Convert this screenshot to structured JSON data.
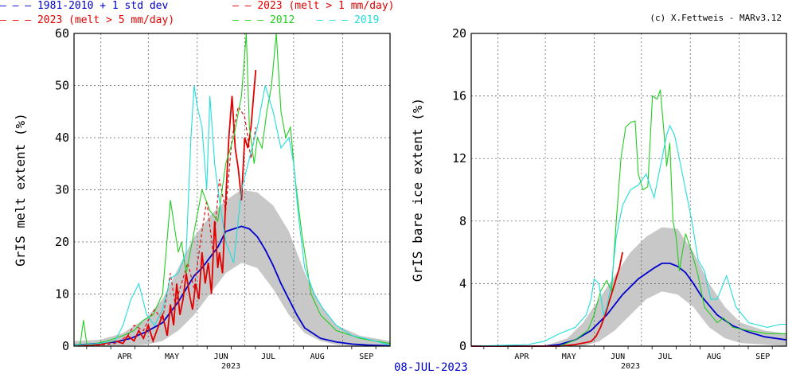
{
  "legend": [
    {
      "dash": "– – –",
      "label": "1981-2010 + 1 std dev",
      "color": "#0000cc"
    },
    {
      "dash": "— —",
      "label": "2023 (melt > 1 mm/day)",
      "color": "#e00000"
    },
    {
      "dash": "– – –",
      "label": "2023 (melt > 5 mm/day)",
      "color": "#e00000"
    },
    {
      "dash": "– – –",
      "label": "2012",
      "color": "#22cc22"
    },
    {
      "dash": "– – –",
      "label": "2019",
      "color": "#22dddd"
    }
  ],
  "credit": "(c) X.Fettweis - MARv3.12",
  "footer": {
    "year": "2023",
    "date": "08-JUL-2023"
  },
  "colors": {
    "mean": "#0000cc",
    "y2023": "#e00000",
    "y2012": "#22cc22",
    "y2019": "#22dddd",
    "band": "#c8c8c8"
  },
  "chart_data": [
    {
      "type": "line",
      "title": "",
      "ylabel": "GrIS melt extent (%)",
      "xlabel": "2023",
      "ylim": [
        0,
        60
      ],
      "yticks": [
        "0",
        "10",
        "20",
        "30",
        "40",
        "50",
        "60"
      ],
      "xlim": [
        74,
        274
      ],
      "month_ticks": [
        {
          "day": 91,
          "label": "APR"
        },
        {
          "day": 121,
          "label": "MAY"
        },
        {
          "day": 152,
          "label": "JUN"
        },
        {
          "day": 182,
          "label": "JUL"
        },
        {
          "day": 213,
          "label": "AUG"
        },
        {
          "day": 244,
          "label": "SEP"
        }
      ],
      "grid": true,
      "band": {
        "x": [
          74,
          90,
          105,
          120,
          130,
          140,
          150,
          160,
          170,
          180,
          190,
          200,
          210,
          220,
          230,
          240,
          255,
          274
        ],
        "upper": [
          1,
          1.2,
          2.5,
          5.5,
          9,
          15,
          21,
          25,
          28,
          30,
          29.5,
          27,
          22,
          14,
          8,
          4,
          2,
          1
        ],
        "lower": [
          0,
          0,
          0,
          0.3,
          1,
          3,
          6,
          10,
          14,
          16,
          15,
          11,
          6,
          2.5,
          1,
          0.3,
          0,
          0
        ]
      },
      "series": [
        {
          "name": "1981-2010",
          "key": "mean",
          "x": [
            74,
            90,
            100,
            110,
            120,
            130,
            140,
            145,
            150,
            155,
            160,
            165,
            170,
            175,
            180,
            185,
            190,
            195,
            200,
            205,
            210,
            215,
            220,
            230,
            240,
            250,
            260,
            274
          ],
          "y": [
            0.2,
            0.5,
            0.8,
            1.5,
            2.8,
            4.5,
            8.5,
            11,
            13.5,
            15,
            17,
            19,
            22,
            22.5,
            23,
            22.5,
            21,
            18.5,
            15.5,
            12,
            9,
            6,
            3.5,
            1.5,
            0.8,
            0.4,
            0.2,
            0.05
          ]
        },
        {
          "name": "2023 (melt > 1 mm/day)",
          "key": "y2023",
          "x": [
            74,
            90,
            100,
            105,
            108,
            112,
            115,
            118,
            121,
            124,
            127,
            130,
            133,
            135,
            137,
            139,
            141,
            143,
            145,
            147,
            149,
            151,
            153,
            155,
            157,
            159,
            161,
            163,
            165,
            166,
            168,
            170,
            172,
            174,
            176,
            178,
            180,
            182,
            184,
            186,
            189
          ],
          "y": [
            0.1,
            0.3,
            1,
            0.5,
            2,
            1,
            3,
            1.5,
            4,
            1,
            3.5,
            6,
            2,
            8,
            4,
            12,
            6,
            9,
            14,
            10,
            7,
            12,
            9,
            18,
            12,
            16,
            10,
            24,
            15,
            18,
            14,
            28,
            40,
            48,
            38,
            34,
            28,
            40,
            38,
            42,
            53
          ]
        },
        {
          "name": "2023 (melt > 5 mm/day)",
          "key": "y2023",
          "dashed": true,
          "x": [
            74,
            90,
            100,
            108,
            112,
            118,
            121,
            125,
            130,
            135,
            138,
            142,
            146,
            150,
            154,
            158,
            162,
            166,
            170,
            174,
            178,
            182,
            186,
            189
          ],
          "y": [
            0,
            0.2,
            0.5,
            2,
            4,
            3,
            5,
            7,
            5,
            14,
            8,
            12,
            16,
            11,
            20,
            28,
            18,
            32,
            26,
            40,
            46,
            44,
            36,
            42
          ]
        },
        {
          "name": "2012",
          "key": "y2012",
          "x": [
            74,
            78,
            80,
            82,
            85,
            95,
            105,
            112,
            118,
            124,
            130,
            135,
            138,
            140,
            142,
            145,
            150,
            155,
            160,
            165,
            170,
            175,
            180,
            183,
            185,
            188,
            190,
            193,
            196,
            199,
            202,
            205,
            208,
            211,
            214,
            218,
            224,
            230,
            240,
            255,
            274
          ],
          "y": [
            0,
            0.5,
            5,
            0.5,
            0.3,
            1,
            2,
            3,
            5,
            6,
            10,
            28,
            22,
            18,
            20,
            14,
            22,
            30,
            26,
            24,
            35,
            40,
            48,
            60,
            42,
            35,
            40,
            38,
            45,
            50,
            60,
            45,
            40,
            42,
            32,
            22,
            10,
            6,
            3,
            1.5,
            0.5
          ]
        },
        {
          "name": "2019",
          "key": "y2019",
          "x": [
            74,
            90,
            100,
            105,
            110,
            115,
            120,
            125,
            130,
            135,
            140,
            145,
            148,
            150,
            152,
            155,
            158,
            160,
            163,
            166,
            170,
            175,
            180,
            185,
            190,
            195,
            200,
            205,
            210,
            213,
            216,
            220,
            226,
            232,
            240,
            250,
            262,
            270,
            274
          ],
          "y": [
            0.2,
            0.5,
            1,
            4,
            9,
            12,
            6,
            4,
            7,
            13,
            14,
            18,
            40,
            50,
            46,
            42,
            30,
            48,
            35,
            28,
            20,
            16,
            30,
            36,
            42,
            50,
            45,
            38,
            40,
            35,
            25,
            15,
            10,
            7,
            4,
            2,
            1.2,
            0.5,
            0.2
          ]
        }
      ]
    },
    {
      "type": "line",
      "title": "",
      "ylabel": "GrIS bare ice extent (%)",
      "xlabel": "2023",
      "ylim": [
        0,
        20
      ],
      "yticks": [
        "0",
        "4",
        "8",
        "12",
        "16",
        "20"
      ],
      "xlim": [
        74,
        274
      ],
      "month_ticks": [
        {
          "day": 91,
          "label": "APR"
        },
        {
          "day": 121,
          "label": "MAY"
        },
        {
          "day": 152,
          "label": "JUN"
        },
        {
          "day": 182,
          "label": "JUL"
        },
        {
          "day": 213,
          "label": "AUG"
        },
        {
          "day": 244,
          "label": "SEP"
        }
      ],
      "grid": true,
      "band": {
        "x": [
          74,
          120,
          135,
          145,
          155,
          165,
          175,
          185,
          195,
          205,
          215,
          225,
          235,
          245,
          260,
          274
        ],
        "upper": [
          0,
          0,
          0.5,
          1.5,
          3,
          4.5,
          6,
          7,
          7.6,
          7.5,
          6,
          4,
          2.5,
          1.5,
          1,
          0.8
        ],
        "lower": [
          0,
          0,
          0,
          0,
          0.3,
          1,
          2,
          3,
          3.5,
          3.3,
          2.5,
          1.2,
          0.5,
          0.2,
          0.1,
          0
        ]
      },
      "series": [
        {
          "name": "1981-2010",
          "key": "mean",
          "x": [
            74,
            120,
            130,
            140,
            150,
            160,
            170,
            180,
            190,
            195,
            200,
            205,
            210,
            215,
            220,
            230,
            240,
            250,
            260,
            274
          ],
          "y": [
            0,
            0,
            0.1,
            0.4,
            1,
            2,
            3.3,
            4.3,
            5,
            5.3,
            5.3,
            5.1,
            4.7,
            4,
            3.2,
            2,
            1.3,
            0.9,
            0.6,
            0.4
          ]
        },
        {
          "name": "2023 (melt > 1 mm/day)",
          "key": "y2023",
          "x": [
            74,
            130,
            140,
            145,
            150,
            153,
            156,
            159,
            162,
            165,
            168,
            170
          ],
          "y": [
            0,
            0,
            0.1,
            0.2,
            0.3,
            0.6,
            1.2,
            2,
            3,
            4,
            5,
            6
          ]
        },
        {
          "name": "2012",
          "key": "y2012",
          "x": [
            74,
            130,
            140,
            148,
            152,
            156,
            160,
            163,
            166,
            169,
            172,
            175,
            178,
            180,
            183,
            186,
            189,
            192,
            194,
            196,
            198,
            200,
            202,
            204,
            206,
            208,
            210,
            214,
            218,
            222,
            226,
            230,
            234,
            240,
            250,
            262,
            274
          ],
          "y": [
            0,
            0,
            0.4,
            1,
            2,
            3.5,
            4.2,
            3.5,
            8,
            12,
            14,
            14.3,
            14.4,
            11,
            10,
            10.2,
            16,
            15.8,
            16.4,
            14,
            11.5,
            13,
            8,
            7,
            4.8,
            6,
            7.2,
            6,
            4.5,
            2.5,
            2,
            1.5,
            1.8,
            1.2,
            1,
            0.8,
            0.8
          ]
        },
        {
          "name": "2019",
          "key": "y2019",
          "x": [
            74,
            110,
            120,
            130,
            140,
            147,
            150,
            152,
            155,
            158,
            160,
            163,
            166,
            170,
            175,
            180,
            185,
            190,
            195,
            198,
            200,
            203,
            206,
            210,
            214,
            218,
            222,
            226,
            230,
            236,
            242,
            250,
            262,
            270,
            274
          ],
          "y": [
            0,
            0.1,
            0.3,
            0.8,
            1.2,
            2,
            3,
            4.3,
            4,
            2,
            2.5,
            4,
            7,
            9,
            10,
            10.3,
            11,
            9.5,
            12,
            13.5,
            14.1,
            13.5,
            12,
            10,
            8,
            5.5,
            4.8,
            3,
            3,
            4.5,
            2.5,
            1.5,
            1.2,
            1.4,
            1.4
          ]
        }
      ]
    }
  ]
}
